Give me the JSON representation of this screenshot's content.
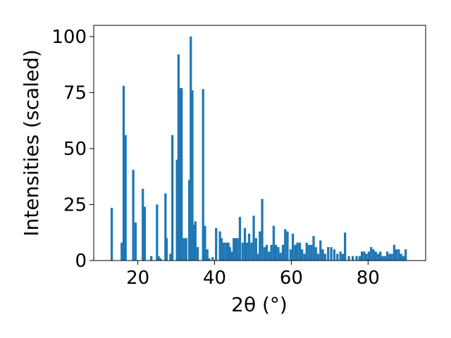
{
  "chart_data": {
    "type": "bar",
    "xlabel": "2θ (°)",
    "ylabel": "Intensities (scaled)",
    "xlim": [
      8.5,
      95
    ],
    "ylim": [
      0,
      105
    ],
    "xticks": [
      20,
      40,
      60,
      80
    ],
    "yticks": [
      0,
      25,
      50,
      75,
      100
    ],
    "bar_width": 0.6,
    "color": "#1f77b4",
    "grid": false,
    "legend": "none",
    "x": [
      13.2,
      15.8,
      16.3,
      16.8,
      18.8,
      19.4,
      21.3,
      21.8,
      23.5,
      25.0,
      25.4,
      25.9,
      27.2,
      27.5,
      28.5,
      29.0,
      30.2,
      30.6,
      30.9,
      31.4,
      32.0,
      32.6,
      33.4,
      33.8,
      34.2,
      34.6,
      35.0,
      35.6,
      37.0,
      37.5,
      38.1,
      38.6,
      39.5,
      40.4,
      41.4,
      41.8,
      42.4,
      43.0,
      43.6,
      44.0,
      44.5,
      45.0,
      45.5,
      46.0,
      46.6,
      47.3,
      47.9,
      48.4,
      49.0,
      49.6,
      50.2,
      50.8,
      51.2,
      51.8,
      52.4,
      53.0,
      53.6,
      54.2,
      54.8,
      55.4,
      56.0,
      56.6,
      57.2,
      57.8,
      58.4,
      59.0,
      59.8,
      60.4,
      61.0,
      61.6,
      62.2,
      62.8,
      63.4,
      64.0,
      64.6,
      65.2,
      65.8,
      66.4,
      67.0,
      67.6,
      68.2,
      68.8,
      69.6,
      70.4,
      71.2,
      72.0,
      72.8,
      73.4,
      74.0,
      75.0,
      76.0,
      77.0,
      77.8,
      78.4,
      79.0,
      79.6,
      80.2,
      80.8,
      81.4,
      82.0,
      82.6,
      83.2,
      83.8,
      84.4,
      85.0,
      85.6,
      86.2,
      86.8,
      87.4,
      88.0,
      88.6,
      89.2,
      89.8
    ],
    "values": [
      23.5,
      8,
      78,
      56,
      40.5,
      17,
      32,
      24,
      2,
      25,
      2,
      1,
      30,
      10,
      3,
      56,
      45,
      92,
      77,
      77,
      10,
      10,
      36,
      100,
      76,
      16,
      17.5,
      6,
      76.5,
      15.5,
      5,
      1,
      1.5,
      14.5,
      13,
      10,
      8,
      8,
      8,
      6,
      4,
      10,
      10,
      10,
      19.5,
      8,
      14.5,
      8,
      12,
      8,
      20,
      10,
      3,
      13,
      27.5,
      6,
      7,
      4,
      7,
      15.5,
      7,
      6,
      3.5,
      7,
      14,
      13,
      5,
      12,
      7,
      8,
      8,
      5,
      3,
      8,
      7,
      7,
      11,
      6,
      3,
      9,
      5,
      3,
      6,
      6,
      5,
      3,
      4,
      3,
      12.5,
      2,
      2,
      2,
      2,
      4,
      4,
      3,
      4,
      6,
      5,
      4,
      3,
      4,
      2,
      2,
      4,
      3,
      3,
      7,
      5,
      5,
      3,
      2,
      5
    ]
  }
}
